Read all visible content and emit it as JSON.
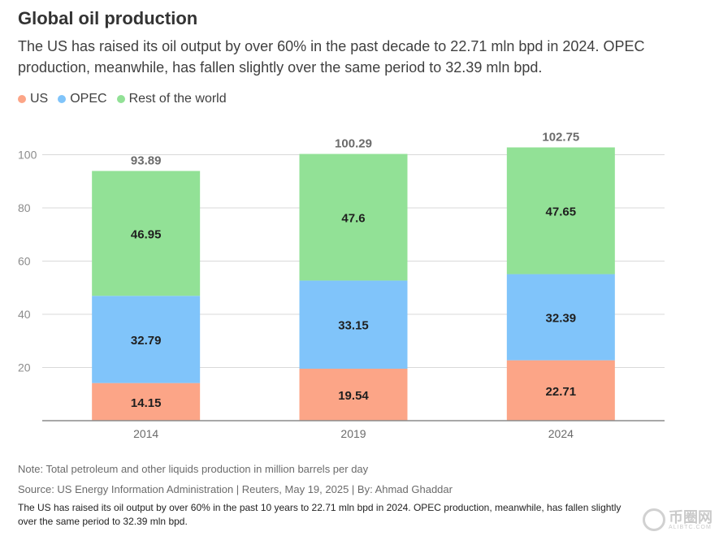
{
  "title": "Global oil production",
  "subtitle": "The US has raised its oil output by over 60% in the past decade to 22.71 mln bpd in 2024. OPEC production, meanwhile, has fallen slightly over the same period to 32.39 mln bpd.",
  "legend": [
    {
      "label": "US",
      "color": "#fca587"
    },
    {
      "label": "OPEC",
      "color": "#80c4fa"
    },
    {
      "label": "Rest of the world",
      "color": "#92e196"
    }
  ],
  "chart_data": {
    "type": "bar",
    "stacked": true,
    "categories": [
      "2014",
      "2019",
      "2024"
    ],
    "series": [
      {
        "name": "US",
        "color": "#fca587",
        "values": [
          14.15,
          19.54,
          22.71
        ]
      },
      {
        "name": "OPEC",
        "color": "#80c4fa",
        "values": [
          32.79,
          33.15,
          32.39
        ]
      },
      {
        "name": "Rest of the world",
        "color": "#92e196",
        "values": [
          46.95,
          47.6,
          47.65
        ]
      }
    ],
    "totals": [
      93.89,
      100.29,
      102.75
    ],
    "yticks": [
      "20",
      "40",
      "60",
      "80",
      "100"
    ],
    "ylim": [
      0,
      108
    ],
    "grid": true,
    "legend_position": "top-left"
  },
  "footer": {
    "note": "Note: Total petroleum and other liquids production in million barrels per day",
    "source": "Source: US Energy Information Administration | Reuters, May 19, 2025 | By: Ahmad Ghaddar",
    "caption": "The US has raised its oil output by over 60% in the past 10 years to 22.71 mln bpd in 2024. OPEC production, meanwhile, has fallen slightly over the same period to 32.39 mln bpd."
  },
  "watermark": {
    "text": "币圈网",
    "sub": "ALIBTC.COM"
  }
}
